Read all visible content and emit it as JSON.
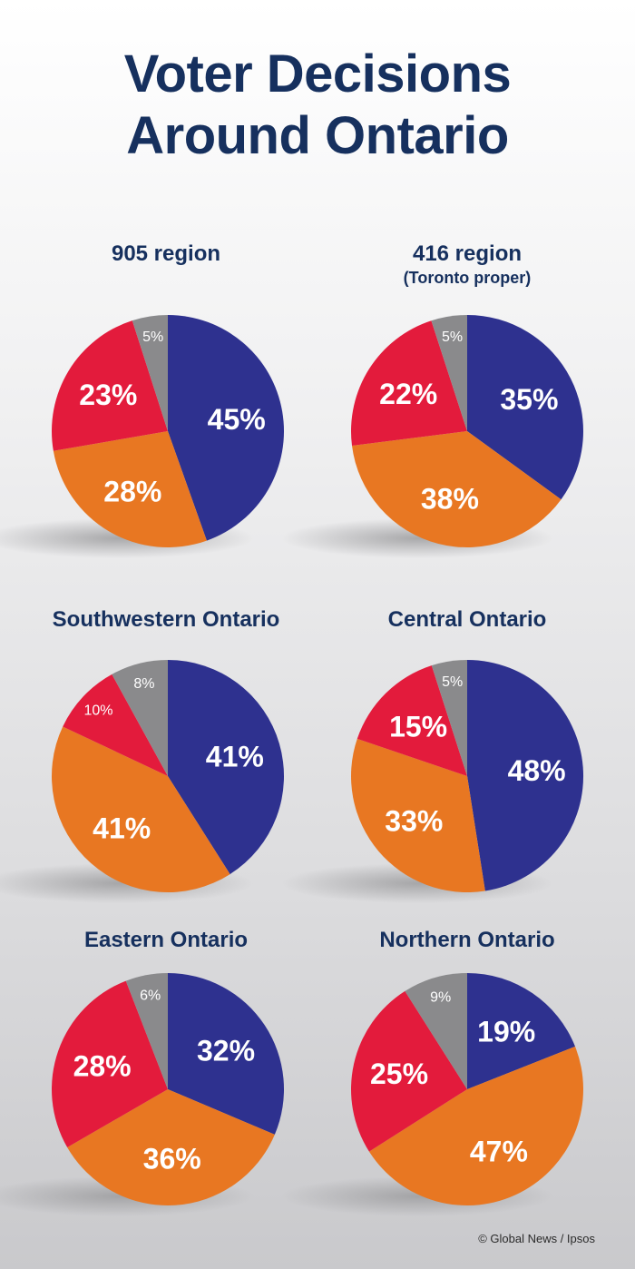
{
  "title_line1": "Voter Decisions",
  "title_line2": "Around Ontario",
  "credit": "© Global News / Ipsos",
  "colors": {
    "title": "#16305e",
    "blue": "#2e318f",
    "orange": "#e87722",
    "red": "#e31b3c",
    "gray": "#8a8a8c",
    "shadow": "#9d9d9f"
  },
  "chart_data": [
    {
      "type": "pie",
      "title": "905 region",
      "subtitle": "",
      "slices": [
        {
          "color": "blue",
          "value": 45,
          "label": "45%"
        },
        {
          "color": "orange",
          "value": 28,
          "label": "28%"
        },
        {
          "color": "red",
          "value": 23,
          "label": "23%"
        },
        {
          "color": "gray",
          "value": 5,
          "label": "5%"
        }
      ]
    },
    {
      "type": "pie",
      "title": "416 region",
      "subtitle": "(Toronto proper)",
      "slices": [
        {
          "color": "blue",
          "value": 35,
          "label": "35%"
        },
        {
          "color": "orange",
          "value": 38,
          "label": "38%"
        },
        {
          "color": "red",
          "value": 22,
          "label": "22%"
        },
        {
          "color": "gray",
          "value": 5,
          "label": "5%"
        }
      ]
    },
    {
      "type": "pie",
      "title": "Southwestern Ontario",
      "subtitle": "",
      "slices": [
        {
          "color": "blue",
          "value": 41,
          "label": "41%"
        },
        {
          "color": "orange",
          "value": 41,
          "label": "41%"
        },
        {
          "color": "red",
          "value": 10,
          "label": "10%"
        },
        {
          "color": "gray",
          "value": 8,
          "label": "8%"
        }
      ]
    },
    {
      "type": "pie",
      "title": "Central Ontario",
      "subtitle": "",
      "slices": [
        {
          "color": "blue",
          "value": 48,
          "label": "48%"
        },
        {
          "color": "orange",
          "value": 33,
          "label": "33%"
        },
        {
          "color": "red",
          "value": 15,
          "label": "15%"
        },
        {
          "color": "gray",
          "value": 5,
          "label": "5%"
        }
      ]
    },
    {
      "type": "pie",
      "title": "Eastern Ontario",
      "subtitle": "",
      "slices": [
        {
          "color": "blue",
          "value": 32,
          "label": "32%"
        },
        {
          "color": "orange",
          "value": 36,
          "label": "36%"
        },
        {
          "color": "red",
          "value": 28,
          "label": "28%"
        },
        {
          "color": "gray",
          "value": 6,
          "label": "6%"
        }
      ]
    },
    {
      "type": "pie",
      "title": "Northern Ontario",
      "subtitle": "",
      "slices": [
        {
          "color": "blue",
          "value": 19,
          "label": "19%"
        },
        {
          "color": "orange",
          "value": 47,
          "label": "47%"
        },
        {
          "color": "red",
          "value": 25,
          "label": "25%"
        },
        {
          "color": "gray",
          "value": 9,
          "label": "9%"
        }
      ]
    }
  ]
}
